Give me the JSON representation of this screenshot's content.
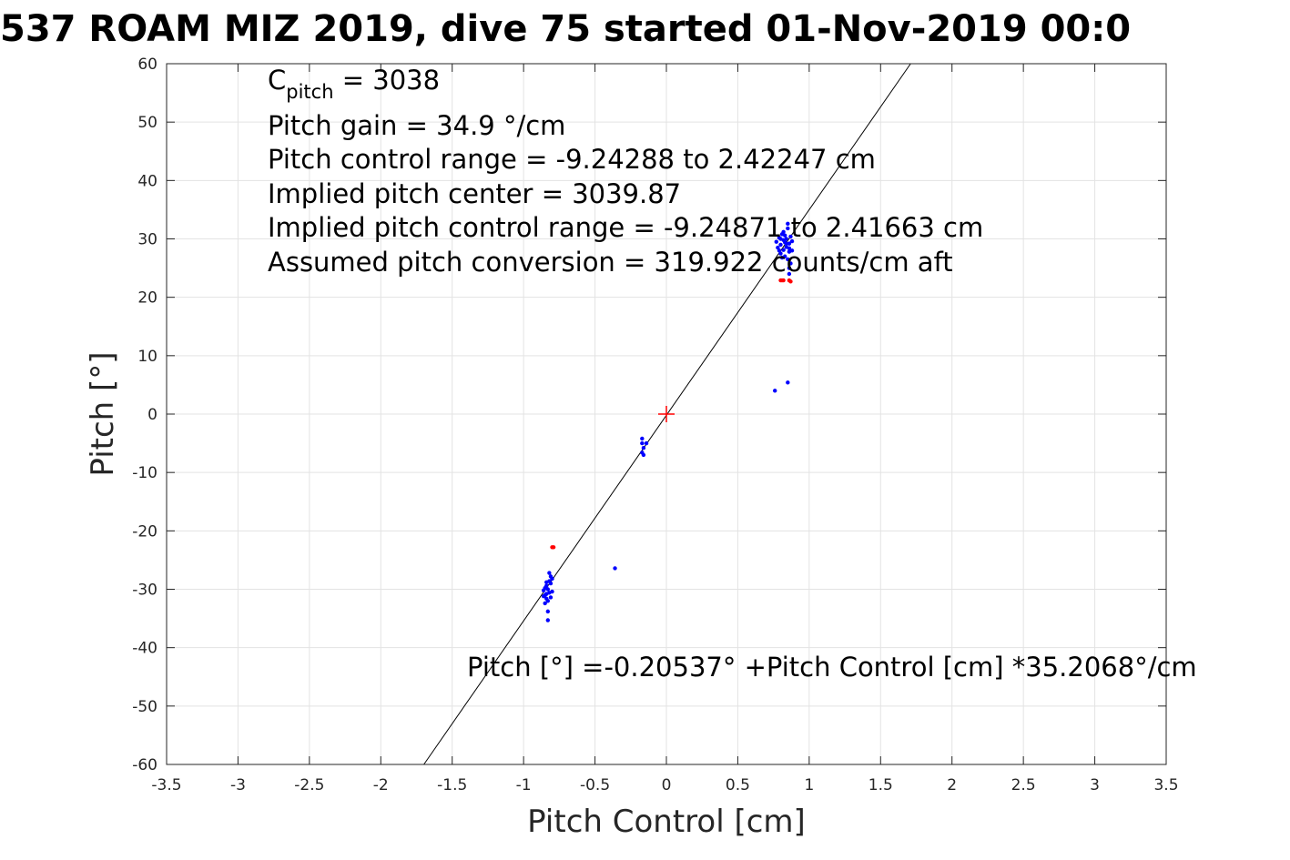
{
  "chart_data": {
    "type": "scatter",
    "title": "537 ROAM MIZ 2019, dive 75 started 01-Nov-2019 00:0",
    "xlabel": "Pitch Control [cm]",
    "ylabel": "Pitch [°]",
    "xlim": [
      -3.5,
      3.5
    ],
    "ylim": [
      -60,
      60
    ],
    "xticks": [
      "-3.5",
      "-3",
      "-2.5",
      "-2",
      "-1.5",
      "-1",
      "-0.5",
      "0",
      "0.5",
      "1",
      "1.5",
      "2",
      "2.5",
      "3",
      "3.5"
    ],
    "yticks": [
      "60",
      "50",
      "40",
      "30",
      "20",
      "10",
      "0",
      "-10",
      "-20",
      "-30",
      "-40",
      "-50",
      "-60"
    ],
    "grid": true,
    "annotations": {
      "c_pitch_symbol": "C",
      "c_pitch_subscript": "pitch",
      "c_pitch_value": " = 3038",
      "lines": [
        "Pitch gain = 34.9 °/cm",
        "Pitch control range = -9.24288 to 2.42247 cm",
        "Implied pitch center = 3039.87",
        "Implied pitch control range = -9.24871 to 2.41663 cm",
        "Assumed pitch conversion = 319.922 counts/cm aft"
      ],
      "fit_equation": "Pitch [°] =-0.20537° +Pitch Control [cm] *35.2068°/cm"
    },
    "fit_line": {
      "intercept": -0.20537,
      "slope": 35.2068,
      "color": "#000000"
    },
    "center_marker": {
      "x": 0,
      "y": 0,
      "color": "#ff0000"
    },
    "series": [
      {
        "color": "#0000ff",
        "points": [
          [
            0.77,
            29.5
          ],
          [
            0.78,
            28.5
          ],
          [
            0.79,
            30.2
          ],
          [
            0.8,
            27.5
          ],
          [
            0.8,
            29.0
          ],
          [
            0.81,
            30.8
          ],
          [
            0.81,
            26.8
          ],
          [
            0.82,
            28.1
          ],
          [
            0.82,
            31.2
          ],
          [
            0.83,
            29.4
          ],
          [
            0.83,
            27.0
          ],
          [
            0.84,
            30.0
          ],
          [
            0.84,
            28.6
          ],
          [
            0.85,
            26.5
          ],
          [
            0.85,
            31.8
          ],
          [
            0.86,
            29.2
          ],
          [
            0.86,
            27.8
          ],
          [
            0.87,
            30.4
          ],
          [
            0.87,
            25.8
          ],
          [
            0.86,
            25.0
          ],
          [
            0.86,
            24.0
          ],
          [
            0.85,
            32.6
          ],
          [
            0.88,
            28.0
          ],
          [
            0.88,
            29.6
          ],
          [
            0.8,
            30.0
          ],
          [
            0.82,
            29.8
          ],
          [
            0.84,
            29.2
          ],
          [
            0.86,
            28.4
          ],
          [
            0.79,
            28.0
          ],
          [
            0.83,
            30.6
          ],
          [
            0.76,
            4.0
          ],
          [
            0.85,
            5.4
          ],
          [
            -0.17,
            -4.2
          ],
          [
            -0.17,
            -5.0
          ],
          [
            -0.16,
            -5.8
          ],
          [
            -0.17,
            -6.6
          ],
          [
            -0.16,
            -7.0
          ],
          [
            -0.14,
            -5.0
          ],
          [
            -0.36,
            -26.4
          ],
          [
            -0.86,
            -30.2
          ],
          [
            -0.85,
            -31.0
          ],
          [
            -0.84,
            -29.4
          ],
          [
            -0.83,
            -32.0
          ],
          [
            -0.82,
            -28.6
          ],
          [
            -0.82,
            -30.6
          ],
          [
            -0.81,
            -27.8
          ],
          [
            -0.81,
            -29.0
          ],
          [
            -0.84,
            -31.6
          ],
          [
            -0.85,
            -29.8
          ],
          [
            -0.83,
            -30.0
          ],
          [
            -0.82,
            -27.2
          ],
          [
            -0.84,
            -28.8
          ],
          [
            -0.86,
            -31.2
          ],
          [
            -0.83,
            -33.8
          ],
          [
            -0.83,
            -35.3
          ],
          [
            -0.8,
            -28.2
          ],
          [
            -0.8,
            -30.4
          ],
          [
            -0.85,
            -32.4
          ],
          [
            -0.81,
            -31.4
          ],
          [
            -0.84,
            -30.8
          ]
        ]
      },
      {
        "color": "#ff0000",
        "points": [
          [
            0.8,
            22.9
          ],
          [
            0.81,
            22.9
          ],
          [
            0.82,
            22.9
          ],
          [
            0.86,
            22.9
          ],
          [
            0.87,
            22.7
          ],
          [
            -0.8,
            -22.8
          ],
          [
            -0.79,
            -22.8
          ]
        ]
      }
    ]
  }
}
